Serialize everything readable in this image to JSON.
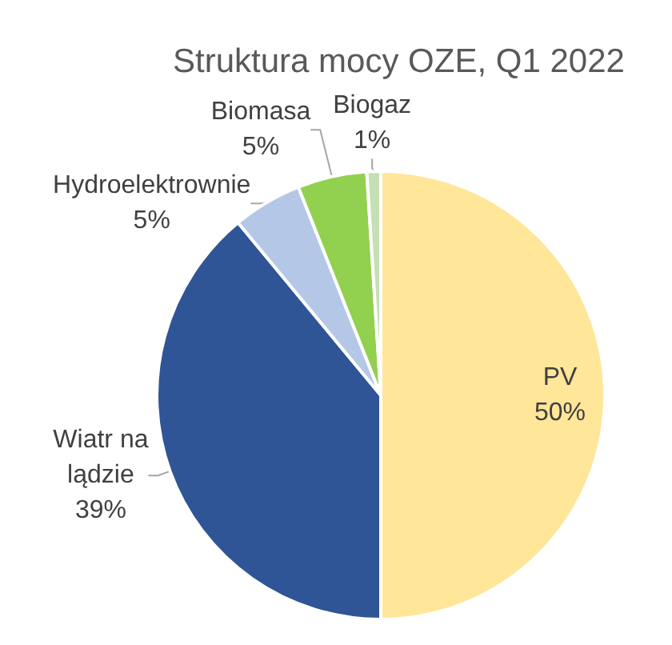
{
  "chart_data": {
    "type": "pie",
    "title": "Struktura mocy OZE, Q1 2022",
    "categories": [
      "PV",
      "Wiatr na lądzie",
      "Hydroelektrownie",
      "Biomasa",
      "Biogaz"
    ],
    "values": [
      50,
      39,
      5,
      5,
      1
    ],
    "colors": [
      "#ffe699",
      "#2f5597",
      "#b4c7e7",
      "#92d050",
      "#c5e0b4"
    ],
    "value_labels": [
      "50%",
      "39%",
      "5%",
      "5%",
      "1%"
    ]
  }
}
